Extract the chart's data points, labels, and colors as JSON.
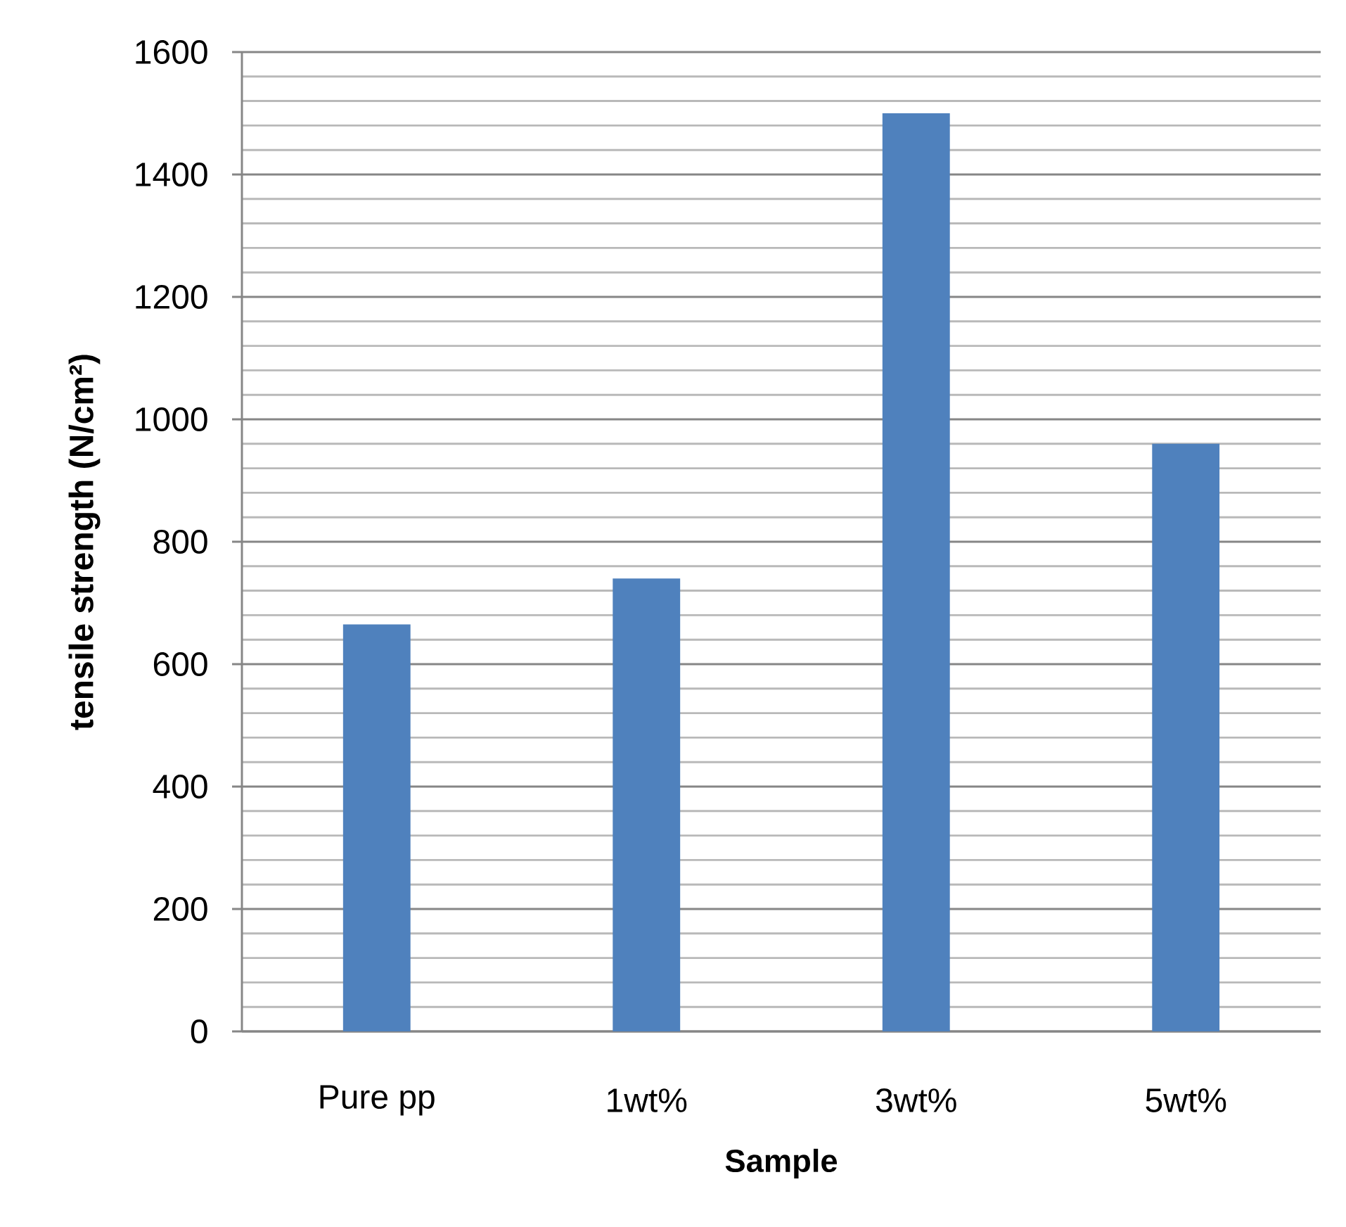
{
  "chart_data": {
    "type": "bar",
    "xlabel": "Sample",
    "ylabel": "tensile strength (N/cm²)",
    "categories": [
      "Pure pp",
      "1wt%",
      "3wt%",
      "5wt%"
    ],
    "values": [
      665,
      740,
      1500,
      960
    ],
    "color": "#4f81bd",
    "ylim": [
      0,
      1600
    ],
    "yticks": [
      0,
      200,
      400,
      600,
      800,
      1000,
      1200,
      1400,
      1600
    ],
    "grid": "y"
  }
}
